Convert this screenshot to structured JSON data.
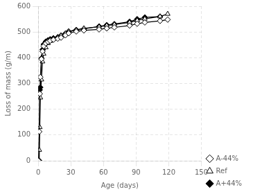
{
  "chart_data": {
    "type": "line",
    "xlabel": "Age (days)",
    "ylabel": "Loss of mass (g/m)",
    "xlim": [
      0,
      150
    ],
    "ylim": [
      0,
      600
    ],
    "xticks": [
      0,
      30,
      60,
      90,
      120,
      150
    ],
    "yticks": [
      0,
      100,
      200,
      300,
      400,
      500,
      600
    ],
    "grid": true,
    "legend": "lower right",
    "series": [
      {
        "name": "A-44%",
        "color": "#000000",
        "marker": "diamond-open",
        "x": [
          0.3,
          1,
          1.5,
          2,
          3,
          4,
          5,
          7,
          9,
          11,
          14,
          18,
          21,
          25,
          28,
          35,
          42,
          56,
          63,
          70,
          84,
          91,
          98,
          112,
          119
        ],
        "values": [
          0,
          113,
          260,
          325,
          395,
          425,
          445,
          456,
          462,
          466,
          470,
          474,
          478,
          487,
          495,
          502,
          506,
          510,
          514,
          518,
          525,
          532,
          537,
          543,
          548
        ]
      },
      {
        "name": "Ref",
        "color": "#000000",
        "marker": "triangle-open",
        "x": [
          0.3,
          1,
          1.5,
          2,
          3,
          4,
          5,
          7,
          9,
          11,
          14,
          18,
          21,
          25,
          28,
          35,
          42,
          56,
          63,
          70,
          84,
          91,
          98,
          112,
          119
        ],
        "values": [
          0,
          42,
          130,
          245,
          315,
          385,
          415,
          440,
          456,
          465,
          472,
          478,
          486,
          494,
          502,
          508,
          514,
          520,
          525,
          529,
          537,
          545,
          551,
          560,
          570
        ]
      },
      {
        "name": "A+44%",
        "color": "#000000",
        "marker": "diamond",
        "x": [
          0.3,
          1,
          1.5,
          2,
          3,
          4,
          5,
          7,
          9,
          11,
          14,
          18,
          21,
          25,
          28,
          35,
          42,
          56,
          63,
          70,
          84,
          91,
          98,
          112
        ],
        "values": [
          0,
          0,
          275,
          285,
          398,
          432,
          452,
          463,
          468,
          472,
          476,
          480,
          486,
          494,
          502,
          508,
          512,
          522,
          527,
          531,
          540,
          550,
          557,
          560
        ]
      }
    ]
  }
}
